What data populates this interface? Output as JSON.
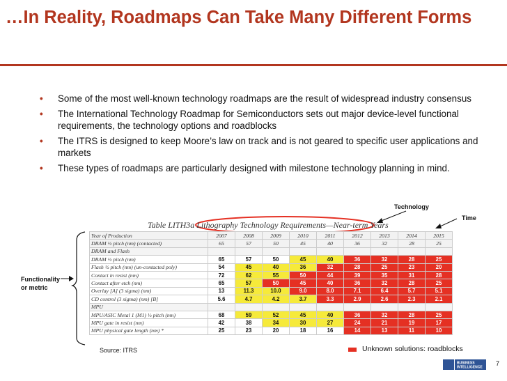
{
  "slide": {
    "title": "…In Reality, Roadmaps Can Take Many Different Forms",
    "bullets": [
      "Some of the most well-known technology roadmaps are the result of widespread industry consensus",
      "The International Technology Roadmap for Semiconductors sets out major device-level functional requirements, the technology options and roadblocks",
      "The ITRS is designed to keep Moore’s law on track and is not geared to specific user applications and markets",
      "These types of roadmaps are particularly designed with milestone technology planning in mind."
    ],
    "bullet_glyph": "•",
    "labels": {
      "technology": "Technology",
      "time": "Time",
      "functionality": "Functionality",
      "metric": "or metric"
    },
    "source": "Source: ITRS",
    "legend": "Unknown solutions: roadblocks",
    "page_number": "7",
    "accent_color": "#b2361f",
    "roadblock_color": "#e53023",
    "logo_text": [
      "BUSINESS",
      "INTELLIGENCE"
    ]
  },
  "table": {
    "title": "Table LITH3a   Lithography Technology Requirements—Near-term Years",
    "years": [
      "2007",
      "2008",
      "2009",
      "2010",
      "2011",
      "2012",
      "2013",
      "2014",
      "2015"
    ],
    "rows": [
      {
        "label": "DRAM ½ pitch (nm) (contacted)",
        "cells": [
          "65",
          "57",
          "50",
          "45",
          "40",
          "36",
          "32",
          "28",
          "25"
        ],
        "colors": [
          "w",
          "w",
          "w",
          "w",
          "w",
          "w",
          "w",
          "w",
          "w"
        ],
        "style": "year"
      },
      {
        "label": "DRAM and Flash",
        "cells": [
          "",
          "",
          "",
          "",
          "",
          "",
          "",
          "",
          ""
        ],
        "colors": [
          "w",
          "w",
          "w",
          "w",
          "w",
          "w",
          "w",
          "w",
          "w"
        ],
        "style": "sec"
      },
      {
        "label": "DRAM ½ pitch (nm)",
        "cells": [
          "65",
          "57",
          "50",
          "45",
          "40",
          "36",
          "32",
          "28",
          "25"
        ],
        "colors": [
          "w",
          "w",
          "w",
          "y",
          "y",
          "r",
          "r",
          "r",
          "r"
        ]
      },
      {
        "label": "Flash ½ pitch (nm) (un-contacted poly)",
        "cells": [
          "54",
          "45",
          "40",
          "36",
          "32",
          "28",
          "25",
          "23",
          "20"
        ],
        "colors": [
          "w",
          "y",
          "y",
          "y",
          "r",
          "r",
          "r",
          "r",
          "r"
        ]
      },
      {
        "label": "Contact in resist (nm)",
        "cells": [
          "72",
          "62",
          "55",
          "50",
          "44",
          "39",
          "35",
          "31",
          "28"
        ],
        "colors": [
          "w",
          "y",
          "y",
          "r",
          "r",
          "r",
          "r",
          "r",
          "r"
        ]
      },
      {
        "label": "Contact after etch (nm)",
        "cells": [
          "65",
          "57",
          "50",
          "45",
          "40",
          "36",
          "32",
          "28",
          "25"
        ],
        "colors": [
          "w",
          "y",
          "r",
          "r",
          "r",
          "r",
          "r",
          "r",
          "r"
        ]
      },
      {
        "label": "Overlay [A] (3 sigma) (nm)",
        "cells": [
          "13",
          "11.3",
          "10.0",
          "9.0",
          "8.0",
          "7.1",
          "6.4",
          "5.7",
          "5.1"
        ],
        "colors": [
          "w",
          "y",
          "y",
          "r",
          "r",
          "r",
          "r",
          "r",
          "r"
        ]
      },
      {
        "label": "CD control (3 sigma) (nm) [B]",
        "cells": [
          "5.6",
          "4.7",
          "4.2",
          "3.7",
          "3.3",
          "2.9",
          "2.6",
          "2.3",
          "2.1"
        ],
        "colors": [
          "w",
          "y",
          "y",
          "y",
          "r",
          "r",
          "r",
          "r",
          "r"
        ]
      },
      {
        "label": "MPU",
        "cells": [
          "",
          "",
          "",
          "",
          "",
          "",
          "",
          "",
          ""
        ],
        "colors": [
          "w",
          "w",
          "w",
          "w",
          "w",
          "w",
          "w",
          "w",
          "w"
        ],
        "style": "sec"
      },
      {
        "label": "MPU/ASIC Metal 1 (M1) ½ pitch (nm)",
        "cells": [
          "68",
          "59",
          "52",
          "45",
          "40",
          "36",
          "32",
          "28",
          "25"
        ],
        "colors": [
          "w",
          "y",
          "y",
          "y",
          "y",
          "r",
          "r",
          "r",
          "r"
        ]
      },
      {
        "label": "MPU gate in resist (nm)",
        "cells": [
          "42",
          "38",
          "34",
          "30",
          "27",
          "24",
          "21",
          "19",
          "17"
        ],
        "colors": [
          "w",
          "w",
          "y",
          "y",
          "y",
          "r",
          "r",
          "r",
          "r"
        ]
      },
      {
        "label": "MPU physical gate length (nm) *",
        "cells": [
          "25",
          "23",
          "20",
          "18",
          "16",
          "14",
          "13",
          "11",
          "10"
        ],
        "colors": [
          "w",
          "w",
          "w",
          "w",
          "w",
          "r",
          "r",
          "r",
          "r"
        ]
      }
    ]
  }
}
